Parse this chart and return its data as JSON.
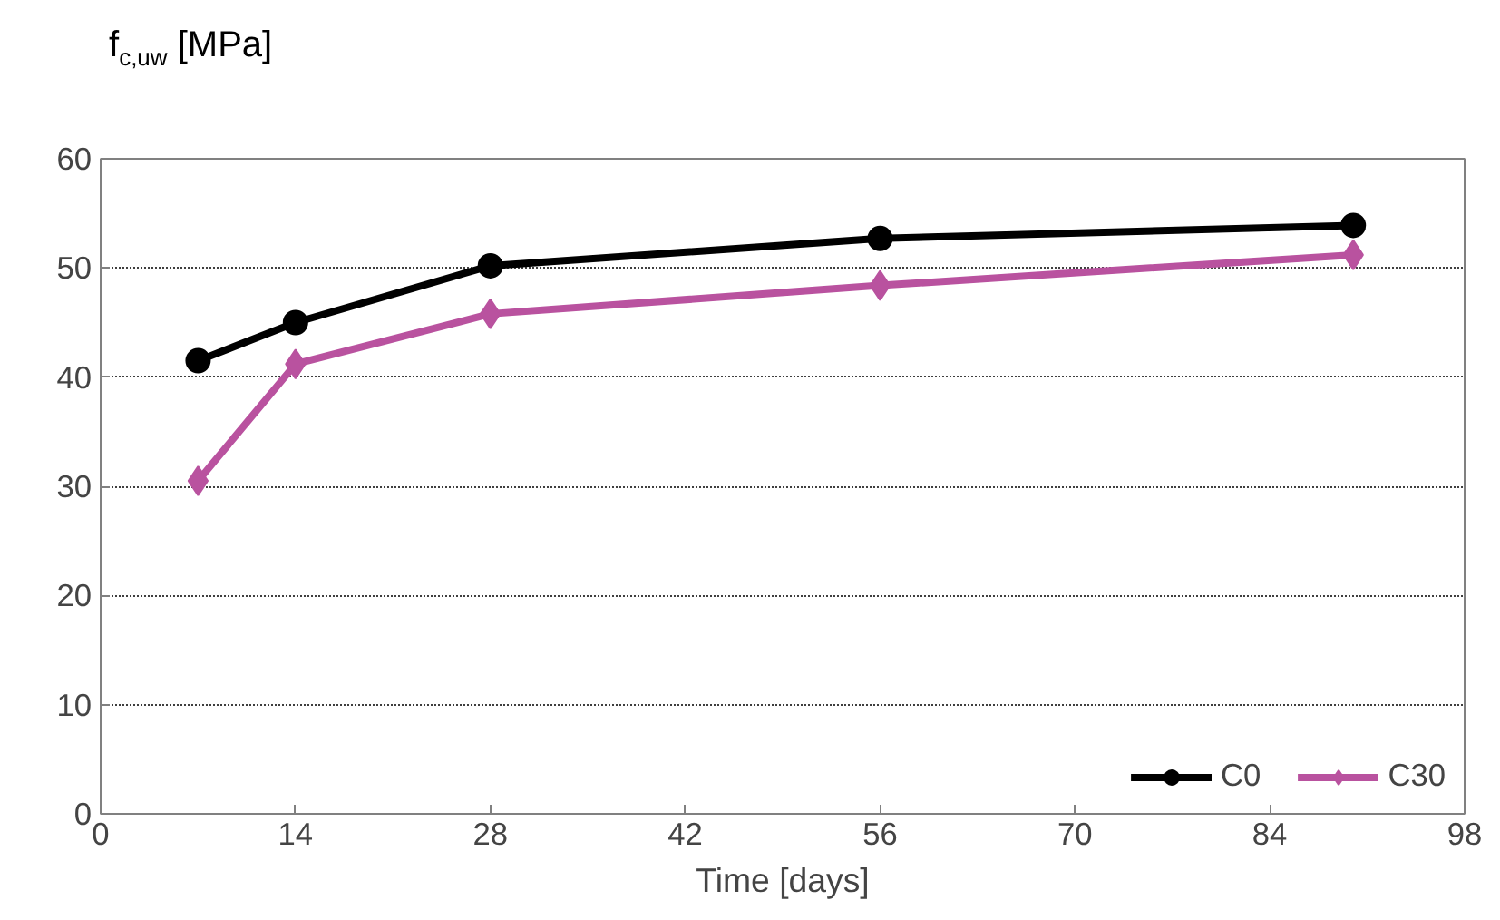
{
  "chart_data": {
    "type": "line",
    "ylabel": "f$_{c,uw}$ [MPa]",
    "xlabel": "Time [days]",
    "x": [
      7,
      14,
      28,
      56,
      90
    ],
    "series": [
      {
        "name": "C0",
        "color": "#000000",
        "marker": "circle",
        "values": [
          41.5,
          45.0,
          50.2,
          52.7,
          53.9
        ]
      },
      {
        "name": "C30",
        "color": "#b9529f",
        "marker": "diamond",
        "values": [
          30.5,
          41.2,
          45.8,
          48.4,
          51.2
        ]
      }
    ],
    "xlim": [
      0,
      98
    ],
    "xticks": [
      0,
      14,
      28,
      42,
      56,
      70,
      84,
      98
    ],
    "ylim": [
      0,
      60
    ],
    "yticks": [
      0,
      10,
      20,
      30,
      40,
      50,
      60
    ],
    "grid": "y",
    "legend": "bottom right",
    "line_style": "solid"
  }
}
